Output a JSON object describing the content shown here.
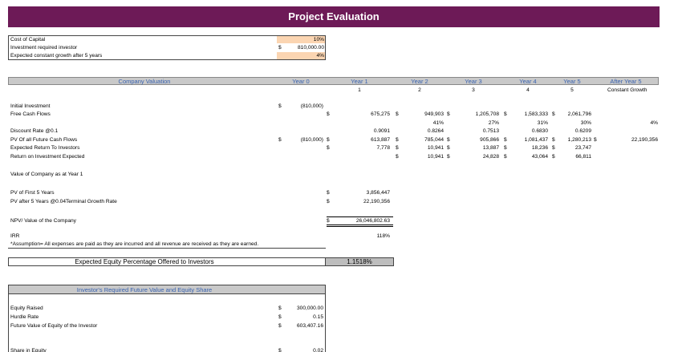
{
  "title": "Project Evaluation",
  "inputs": [
    {
      "label": "Cost of Capital",
      "value": "10%"
    },
    {
      "label": "Investment required investor",
      "currency": "$",
      "value": "810,000.00"
    },
    {
      "label": "Expected constant growth after 5 years",
      "value": "4%"
    }
  ],
  "valuation": {
    "header": [
      "Company Valuation",
      "Year 0",
      "Year 1",
      "Year 2",
      "Year 3",
      "Year 4",
      "Year 5",
      "After Year 5"
    ],
    "year_numbers": [
      "1",
      "2",
      "3",
      "4",
      "5",
      "Constant Growth"
    ],
    "rows": [
      {
        "label": "Initial Investment",
        "cells": [
          "$",
          "(810,000)"
        ]
      },
      {
        "label": "Free Cash Flows",
        "cells": [
          "$",
          "675,275",
          "$",
          "949,903",
          "$",
          "1,205,708",
          "$",
          "1,583,333",
          "$",
          "2,061,796"
        ]
      },
      {
        "cells": [
          "41%",
          "27%",
          "31%",
          "30%",
          "4%"
        ]
      },
      {
        "label": "Discount Rate @0.1",
        "cells": [
          "0.9091",
          "0.8264",
          "0.7513",
          "0.6830",
          "0.6209"
        ]
      },
      {
        "label": "PV Of all Future Cash Flows",
        "cells": [
          "$",
          "(810,000)",
          "$",
          "613,887",
          "$",
          "785,044",
          "$",
          "905,866",
          "$",
          "1,081,437",
          "$",
          "1,280,213",
          "$",
          "22,190,356"
        ]
      },
      {
        "label": "Expected Return To Investors",
        "cells": [
          "$",
          "7,778",
          "$",
          "10,941",
          "$",
          "13,887",
          "$",
          "18,236",
          "$",
          "23,747"
        ]
      },
      {
        "label": "Return on Investment Expected",
        "cells": [
          "$",
          "10,941",
          "$",
          "24,828",
          "$",
          "43,064",
          "$",
          "66,811"
        ]
      },
      {
        "label": "Value of Company as at Year 1",
        "cells": []
      },
      {
        "label": "PV of First 5 Years",
        "cells": [
          "$",
          "3,856,447"
        ]
      },
      {
        "label": "PV after 5 Years @0.04Terminal Growth Rate",
        "cells": [
          "$",
          "22,190,356"
        ]
      },
      {
        "label": "NPV/ Value of the Company",
        "cells": [
          "$",
          "26,046,802.63"
        ]
      },
      {
        "label": "IRR",
        "cells": [
          "118%"
        ]
      },
      {
        "label": "*Assumption= All expenses are paid as they are incurred and all revenue are received as they are earned.",
        "cells": []
      }
    ]
  },
  "equity_offer": {
    "label": "Expected Equity Percentage Offered to Investors",
    "value": "1.1518%"
  },
  "investor": {
    "header": "Investor's Required Future Value and Equity Share",
    "rows": [
      {
        "label": "Equity Raised",
        "currency": "$",
        "value": "300,000.00"
      },
      {
        "label": "Hurdle Rate",
        "currency": "$",
        "value": "0.15"
      },
      {
        "label": "Future Value of Equity of the Investor",
        "currency": "$",
        "value": "603,407.16"
      },
      {
        "label": "Share in Equity",
        "currency": "$",
        "value": "0.02"
      }
    ]
  }
}
